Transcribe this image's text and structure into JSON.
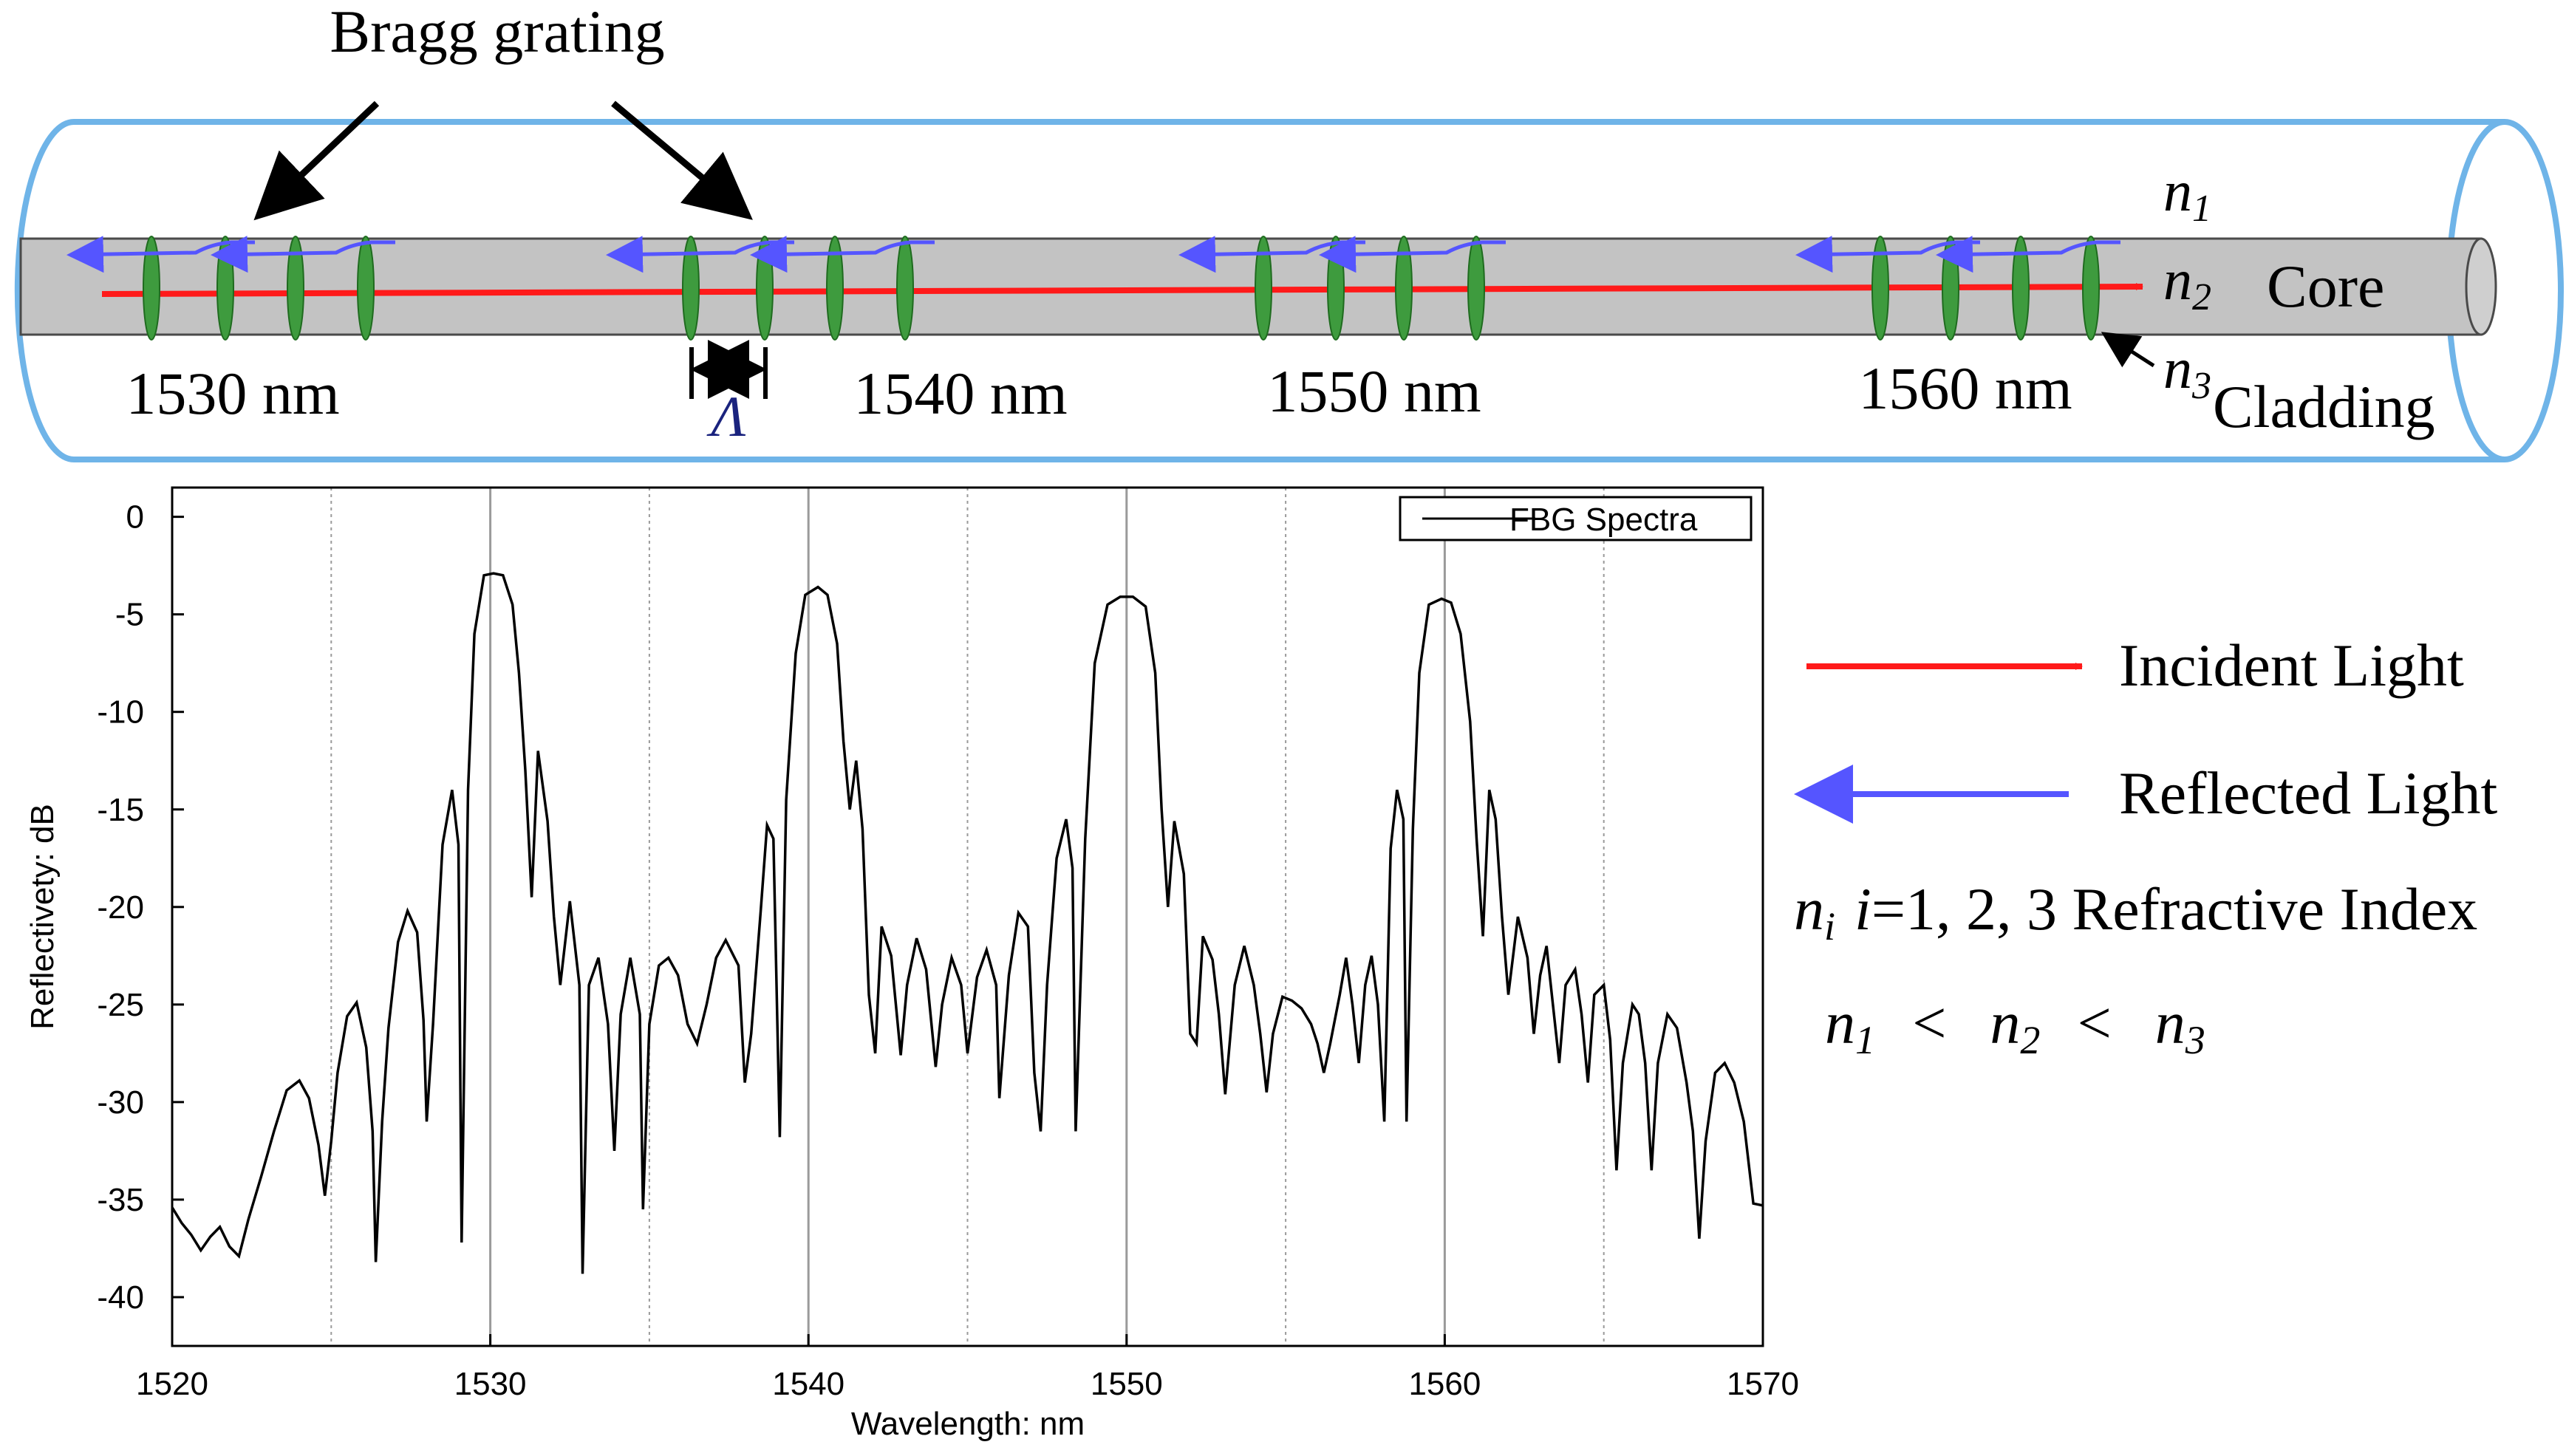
{
  "colors": {
    "fiber_outline": "#6fb4e8",
    "core_fill": "#c3c3c3",
    "core_stroke": "#4a4a4a",
    "grating": "#3e9b3e",
    "grating_stroke": "#1f6b1f",
    "incident": "#ff1a1a",
    "reflected": "#5555ff",
    "ink": "#000000",
    "grid": "#9a9a9a"
  },
  "fiber": {
    "bragg_label": "Bragg grating",
    "period_symbol": "Λ",
    "core_label": "Core",
    "cladding_label": "Cladding",
    "n1": {
      "base": "n",
      "sub": "1"
    },
    "n2": {
      "base": "n",
      "sub": "2"
    },
    "n3": {
      "base": "n",
      "sub": "3"
    },
    "groups": [
      {
        "label": "1530 nm"
      },
      {
        "label": "1540 nm"
      },
      {
        "label": "1550 nm"
      },
      {
        "label": "1560 nm"
      }
    ]
  },
  "legend": {
    "incident_label": "Incident Light",
    "reflected_label": "Reflected Light",
    "index_line": {
      "n": "n",
      "sub": "i",
      "i": "i",
      "rest": "=1, 2, 3 Refractive Index"
    },
    "inequality": {
      "n": "n",
      "sub1": "1",
      "sub2": "2",
      "sub3": "3",
      "lt": "<"
    }
  },
  "chart_data": {
    "type": "line",
    "title": "",
    "xlabel": "Wavelength: nm",
    "ylabel": "Reflectivety: dB",
    "xlim": [
      1520,
      1570
    ],
    "ylim": [
      -42.5,
      1.5
    ],
    "xticks": [
      1520,
      1530,
      1540,
      1550,
      1560,
      1570
    ],
    "yticks": [
      0,
      -5,
      -10,
      -15,
      -20,
      -25,
      -30,
      -35,
      -40
    ],
    "minor_x_gridlines": [
      1525,
      1535,
      1545,
      1555,
      1565
    ],
    "major_x_gridlines": [
      1530,
      1540,
      1550,
      1560
    ],
    "legend": {
      "position": "top-right",
      "entries": [
        "FBG Spectra"
      ]
    },
    "series": [
      {
        "name": "FBG Spectra",
        "peaks": [
          {
            "center": 1530.1,
            "peak_db": -2.9
          },
          {
            "center": 1540.3,
            "peak_db": -3.6
          },
          {
            "center": 1550.2,
            "peak_db": -4.1
          },
          {
            "center": 1560.0,
            "peak_db": -4.2
          }
        ],
        "points": [
          [
            1520.0,
            -35.4
          ],
          [
            1520.3,
            -36.2
          ],
          [
            1520.6,
            -36.8
          ],
          [
            1520.9,
            -37.6
          ],
          [
            1521.2,
            -36.9
          ],
          [
            1521.5,
            -36.4
          ],
          [
            1521.8,
            -37.4
          ],
          [
            1522.1,
            -37.9
          ],
          [
            1522.4,
            -36.0
          ],
          [
            1522.8,
            -33.8
          ],
          [
            1523.2,
            -31.5
          ],
          [
            1523.6,
            -29.4
          ],
          [
            1524.0,
            -28.9
          ],
          [
            1524.3,
            -29.8
          ],
          [
            1524.6,
            -32.2
          ],
          [
            1524.8,
            -34.8
          ],
          [
            1525.0,
            -32.0
          ],
          [
            1525.2,
            -28.5
          ],
          [
            1525.5,
            -25.6
          ],
          [
            1525.8,
            -24.9
          ],
          [
            1526.1,
            -27.2
          ],
          [
            1526.3,
            -31.5
          ],
          [
            1526.4,
            -38.2
          ],
          [
            1526.6,
            -31.0
          ],
          [
            1526.8,
            -26.2
          ],
          [
            1527.1,
            -21.8
          ],
          [
            1527.4,
            -20.2
          ],
          [
            1527.7,
            -21.3
          ],
          [
            1527.9,
            -25.8
          ],
          [
            1528.0,
            -31.0
          ],
          [
            1528.2,
            -26.0
          ],
          [
            1528.5,
            -16.8
          ],
          [
            1528.8,
            -14.0
          ],
          [
            1529.0,
            -16.8
          ],
          [
            1529.1,
            -37.2
          ],
          [
            1529.3,
            -14.0
          ],
          [
            1529.5,
            -6.0
          ],
          [
            1529.8,
            -3.0
          ],
          [
            1530.1,
            -2.9
          ],
          [
            1530.4,
            -3.0
          ],
          [
            1530.7,
            -4.5
          ],
          [
            1530.9,
            -8.0
          ],
          [
            1531.1,
            -13.0
          ],
          [
            1531.3,
            -19.5
          ],
          [
            1531.5,
            -12.0
          ],
          [
            1531.8,
            -15.6
          ],
          [
            1532.0,
            -20.5
          ],
          [
            1532.2,
            -24.0
          ],
          [
            1532.5,
            -19.7
          ],
          [
            1532.8,
            -24.0
          ],
          [
            1532.9,
            -38.8
          ],
          [
            1533.1,
            -24.0
          ],
          [
            1533.4,
            -22.6
          ],
          [
            1533.7,
            -26.0
          ],
          [
            1533.9,
            -32.5
          ],
          [
            1534.1,
            -25.5
          ],
          [
            1534.4,
            -22.6
          ],
          [
            1534.7,
            -25.5
          ],
          [
            1534.8,
            -35.5
          ],
          [
            1535.0,
            -26.0
          ],
          [
            1535.3,
            -23.0
          ],
          [
            1535.6,
            -22.6
          ],
          [
            1535.9,
            -23.5
          ],
          [
            1536.2,
            -26.0
          ],
          [
            1536.5,
            -27.0
          ],
          [
            1536.8,
            -25.0
          ],
          [
            1537.1,
            -22.6
          ],
          [
            1537.4,
            -21.7
          ],
          [
            1537.8,
            -23.0
          ],
          [
            1538.0,
            -29.0
          ],
          [
            1538.2,
            -26.5
          ],
          [
            1538.5,
            -20.2
          ],
          [
            1538.7,
            -15.8
          ],
          [
            1538.9,
            -16.5
          ],
          [
            1539.1,
            -31.8
          ],
          [
            1539.3,
            -14.5
          ],
          [
            1539.6,
            -7.0
          ],
          [
            1539.9,
            -4.0
          ],
          [
            1540.3,
            -3.6
          ],
          [
            1540.6,
            -4.0
          ],
          [
            1540.9,
            -6.5
          ],
          [
            1541.1,
            -11.5
          ],
          [
            1541.3,
            -15.0
          ],
          [
            1541.5,
            -12.5
          ],
          [
            1541.7,
            -16.0
          ],
          [
            1541.9,
            -24.5
          ],
          [
            1542.1,
            -27.5
          ],
          [
            1542.3,
            -21.0
          ],
          [
            1542.6,
            -22.5
          ],
          [
            1542.9,
            -27.6
          ],
          [
            1543.1,
            -24.0
          ],
          [
            1543.4,
            -21.6
          ],
          [
            1543.7,
            -23.2
          ],
          [
            1544.0,
            -28.2
          ],
          [
            1544.2,
            -25.0
          ],
          [
            1544.5,
            -22.6
          ],
          [
            1544.8,
            -24.0
          ],
          [
            1545.0,
            -27.5
          ],
          [
            1545.3,
            -23.6
          ],
          [
            1545.6,
            -22.2
          ],
          [
            1545.9,
            -24.0
          ],
          [
            1546.0,
            -29.8
          ],
          [
            1546.3,
            -23.5
          ],
          [
            1546.6,
            -20.3
          ],
          [
            1546.9,
            -21.0
          ],
          [
            1547.1,
            -28.5
          ],
          [
            1547.3,
            -31.5
          ],
          [
            1547.5,
            -24.0
          ],
          [
            1547.8,
            -17.5
          ],
          [
            1548.1,
            -15.5
          ],
          [
            1548.3,
            -18.0
          ],
          [
            1548.4,
            -31.5
          ],
          [
            1548.7,
            -16.5
          ],
          [
            1549.0,
            -7.5
          ],
          [
            1549.4,
            -4.5
          ],
          [
            1549.8,
            -4.1
          ],
          [
            1550.2,
            -4.1
          ],
          [
            1550.6,
            -4.6
          ],
          [
            1550.9,
            -8.0
          ],
          [
            1551.1,
            -15.0
          ],
          [
            1551.3,
            -20.0
          ],
          [
            1551.5,
            -15.6
          ],
          [
            1551.8,
            -18.3
          ],
          [
            1552.0,
            -26.5
          ],
          [
            1552.2,
            -27.0
          ],
          [
            1552.4,
            -21.5
          ],
          [
            1552.7,
            -22.7
          ],
          [
            1552.9,
            -25.5
          ],
          [
            1553.1,
            -29.6
          ],
          [
            1553.4,
            -24.0
          ],
          [
            1553.7,
            -22.0
          ],
          [
            1554.0,
            -24.0
          ],
          [
            1554.2,
            -26.5
          ],
          [
            1554.4,
            -29.5
          ],
          [
            1554.6,
            -26.5
          ],
          [
            1554.9,
            -24.6
          ],
          [
            1555.2,
            -24.8
          ],
          [
            1555.5,
            -25.2
          ],
          [
            1555.8,
            -26.0
          ],
          [
            1556.0,
            -27.0
          ],
          [
            1556.2,
            -28.5
          ],
          [
            1556.4,
            -27.0
          ],
          [
            1556.7,
            -24.5
          ],
          [
            1556.9,
            -22.6
          ],
          [
            1557.1,
            -25.0
          ],
          [
            1557.3,
            -28.0
          ],
          [
            1557.5,
            -24.0
          ],
          [
            1557.7,
            -22.5
          ],
          [
            1557.9,
            -25.0
          ],
          [
            1558.1,
            -31.0
          ],
          [
            1558.3,
            -17.0
          ],
          [
            1558.5,
            -14.0
          ],
          [
            1558.7,
            -15.5
          ],
          [
            1558.8,
            -31.0
          ],
          [
            1559.0,
            -16.0
          ],
          [
            1559.2,
            -8.0
          ],
          [
            1559.5,
            -4.5
          ],
          [
            1559.9,
            -4.2
          ],
          [
            1560.2,
            -4.4
          ],
          [
            1560.5,
            -6.0
          ],
          [
            1560.8,
            -10.5
          ],
          [
            1561.0,
            -16.5
          ],
          [
            1561.2,
            -21.5
          ],
          [
            1561.4,
            -14.0
          ],
          [
            1561.6,
            -15.5
          ],
          [
            1561.8,
            -20.5
          ],
          [
            1562.0,
            -24.5
          ],
          [
            1562.3,
            -20.5
          ],
          [
            1562.6,
            -22.6
          ],
          [
            1562.8,
            -26.5
          ],
          [
            1563.0,
            -23.5
          ],
          [
            1563.2,
            -22.0
          ],
          [
            1563.4,
            -25.0
          ],
          [
            1563.6,
            -28.0
          ],
          [
            1563.8,
            -24.0
          ],
          [
            1564.1,
            -23.2
          ],
          [
            1564.3,
            -25.5
          ],
          [
            1564.5,
            -29.0
          ],
          [
            1564.7,
            -24.5
          ],
          [
            1565.0,
            -24.0
          ],
          [
            1565.2,
            -26.8
          ],
          [
            1565.4,
            -33.5
          ],
          [
            1565.6,
            -28.0
          ],
          [
            1565.9,
            -25.0
          ],
          [
            1566.1,
            -25.5
          ],
          [
            1566.3,
            -28.0
          ],
          [
            1566.5,
            -33.5
          ],
          [
            1566.7,
            -28.0
          ],
          [
            1567.0,
            -25.5
          ],
          [
            1567.3,
            -26.2
          ],
          [
            1567.6,
            -29.0
          ],
          [
            1567.8,
            -31.5
          ],
          [
            1568.0,
            -37.0
          ],
          [
            1568.2,
            -32.0
          ],
          [
            1568.5,
            -28.5
          ],
          [
            1568.8,
            -28.0
          ],
          [
            1569.1,
            -29.0
          ],
          [
            1569.4,
            -31.0
          ],
          [
            1569.7,
            -35.2
          ],
          [
            1570.0,
            -35.3
          ]
        ]
      }
    ]
  }
}
